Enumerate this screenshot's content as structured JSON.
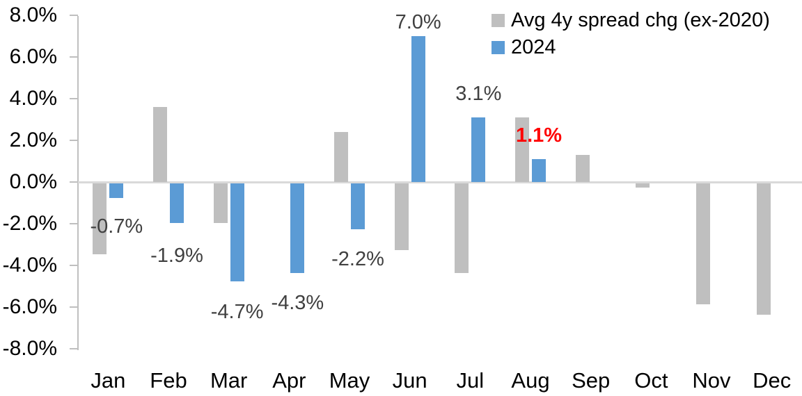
{
  "chart_data": {
    "type": "bar",
    "title": "",
    "xlabel": "",
    "ylabel": "",
    "categories": [
      "Jan",
      "Feb",
      "Mar",
      "Apr",
      "May",
      "Jun",
      "Jul",
      "Aug",
      "Sep",
      "Oct",
      "Nov",
      "Dec"
    ],
    "series": [
      {
        "name": "Avg 4y spread chg (ex-2020)",
        "color": "#BFBFBF",
        "values": [
          -3.4,
          3.6,
          -1.9,
          0.0,
          2.4,
          -3.2,
          -4.3,
          3.1,
          1.3,
          -0.2,
          -5.8,
          -6.3
        ]
      },
      {
        "name": "2024",
        "color": "#5B9BD5",
        "values": [
          -0.7,
          -1.9,
          -4.7,
          -4.3,
          -2.2,
          7.0,
          3.1,
          1.1,
          null,
          null,
          null,
          null
        ]
      }
    ],
    "data_labels": [
      {
        "category": "Jan",
        "series": "2024",
        "text": "-0.7%",
        "color": "#404040",
        "bold": false
      },
      {
        "category": "Feb",
        "series": "2024",
        "text": "-1.9%",
        "color": "#404040",
        "bold": false
      },
      {
        "category": "Mar",
        "series": "2024",
        "text": "-4.7%",
        "color": "#404040",
        "bold": false
      },
      {
        "category": "Apr",
        "series": "2024",
        "text": "-4.3%",
        "color": "#404040",
        "bold": false
      },
      {
        "category": "May",
        "series": "2024",
        "text": "-2.2%",
        "color": "#404040",
        "bold": false
      },
      {
        "category": "Jun",
        "series": "2024",
        "text": "7.0%",
        "color": "#404040",
        "bold": false
      },
      {
        "category": "Jul",
        "series": "2024",
        "text": "3.1%",
        "color": "#404040",
        "bold": false
      },
      {
        "category": "Aug",
        "series": "2024",
        "text": "1.1%",
        "color": "#FF0000",
        "bold": true
      }
    ],
    "y_axis": {
      "min": -8,
      "max": 8,
      "tick_step": 2,
      "tick_labels": [
        "8.0%",
        "6.0%",
        "4.0%",
        "2.0%",
        "0.0%",
        "-2.0%",
        "-4.0%",
        "-6.0%",
        "-8.0%"
      ]
    },
    "legend": {
      "position": "top-right",
      "entries": [
        "Avg 4y spread chg (ex-2020)",
        "2024"
      ]
    },
    "grid": false,
    "style": {
      "background": "#FFFFFF",
      "axis_line_color": "#BFBFBF",
      "zero_line_color": "#D9D9D9",
      "axis_text_color": "#000000",
      "data_label_color": "#404040",
      "highlight_label_color": "#FF0000"
    }
  }
}
